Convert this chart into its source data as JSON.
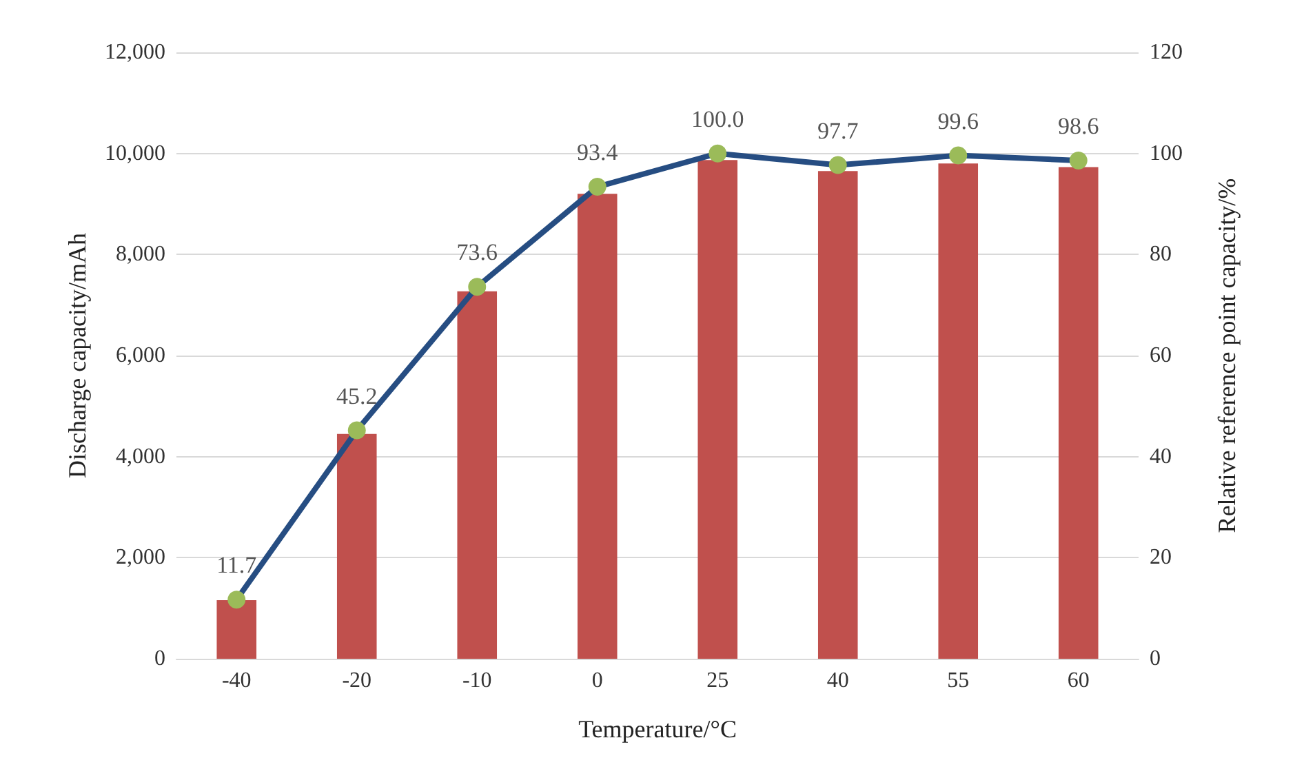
{
  "chart_data": {
    "type": "bar",
    "categories": [
      "-40",
      "-20",
      "-10",
      "0",
      "25",
      "40",
      "55",
      "60"
    ],
    "xlabel": "Temperature/°C",
    "ylabel": "Discharge capacity/mAh",
    "y2label": "Relative reference point capacity/%",
    "series": [
      {
        "color": "#c0504d",
        "values": [
          1160,
          4450,
          7270,
          9200,
          9870,
          9650,
          9800,
          9730
        ]
      },
      {
        "type": "line",
        "axis": "y2",
        "color": "#264d82",
        "colors": [
          "#9bbb59",
          "#9bbb59",
          "#9bbb59",
          "#9bbb59",
          "#9bbb59",
          "#9bbb59",
          "#9bbb59",
          "#9bbb59"
        ],
        "values": [
          11.7,
          45.2,
          73.6,
          93.4,
          100.0,
          97.7,
          99.6,
          98.6
        ],
        "value_labels": [
          "11.7",
          "45.2",
          "73.6",
          "93.4",
          "100.0",
          "97.7",
          "99.6",
          "98.6"
        ]
      }
    ],
    "ylim": [
      0,
      12000
    ],
    "yticks": [
      {
        "value": 0,
        "label": "0"
      },
      {
        "value": 2000,
        "label": "2,000"
      },
      {
        "value": 4000,
        "label": "4,000"
      },
      {
        "value": 6000,
        "label": "6,000"
      },
      {
        "value": 8000,
        "label": "8,000"
      },
      {
        "value": 10000,
        "label": "10,000"
      },
      {
        "value": 12000,
        "label": "12,000"
      }
    ],
    "y2lim": [
      0,
      120
    ],
    "y2ticks": [
      0,
      20,
      40,
      60,
      80,
      100,
      120
    ],
    "grid": "y",
    "marker": "circle"
  }
}
